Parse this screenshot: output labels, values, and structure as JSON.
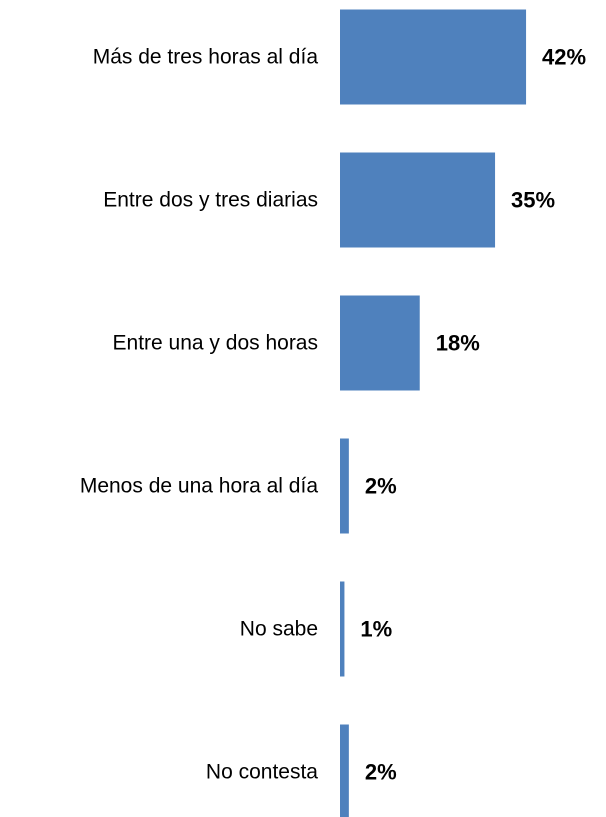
{
  "chart_data": {
    "type": "bar",
    "orientation": "horizontal",
    "categories": [
      "Más de tres horas al día",
      "Entre dos y tres diarias",
      "Entre una y dos horas",
      "Menos de una hora al día",
      "No sabe",
      "No contesta"
    ],
    "values": [
      42,
      35,
      18,
      2,
      1,
      2
    ],
    "value_labels": [
      "42%",
      "35%",
      "18%",
      "2%",
      "1%",
      "2%"
    ],
    "title": "",
    "xlabel": "",
    "ylabel": "",
    "xlim": [
      0,
      45
    ],
    "grid": false,
    "legend": "none",
    "bar_color": "#4F81BD"
  }
}
